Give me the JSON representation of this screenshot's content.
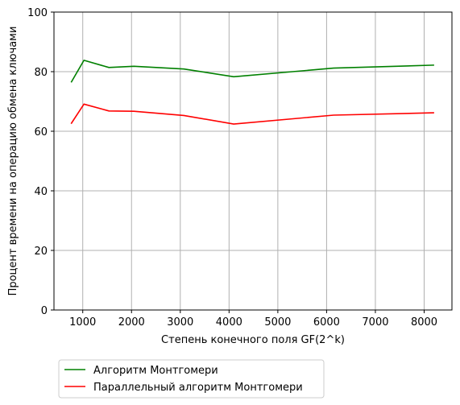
{
  "chart_data": {
    "type": "line",
    "xlabel": "Степень конечного поля GF(2^k)",
    "ylabel": "Процент времени на операцию обмена ключами",
    "xlim": [
      410,
      8570
    ],
    "ylim": [
      0,
      100
    ],
    "xticks": [
      1000,
      2000,
      3000,
      4000,
      5000,
      6000,
      7000,
      8000
    ],
    "yticks": [
      0,
      20,
      40,
      60,
      80,
      100
    ],
    "grid": true,
    "legend_position": "below the plot, left",
    "series": [
      {
        "name": "Алгоритм Монтгомери",
        "color": "#008000",
        "x": [
          768,
          1024,
          1536,
          2048,
          3072,
          4096,
          6144,
          8192
        ],
        "y": [
          76.6,
          83.8,
          81.4,
          81.8,
          80.9,
          78.3,
          81.2,
          82.2
        ]
      },
      {
        "name": "Параллельный алгоритм Монтгомери",
        "color": "#ff0000",
        "x": [
          768,
          1024,
          1536,
          2048,
          3072,
          4096,
          6144,
          8192
        ],
        "y": [
          62.7,
          69.1,
          66.8,
          66.7,
          65.3,
          62.4,
          65.4,
          66.2
        ]
      }
    ]
  }
}
